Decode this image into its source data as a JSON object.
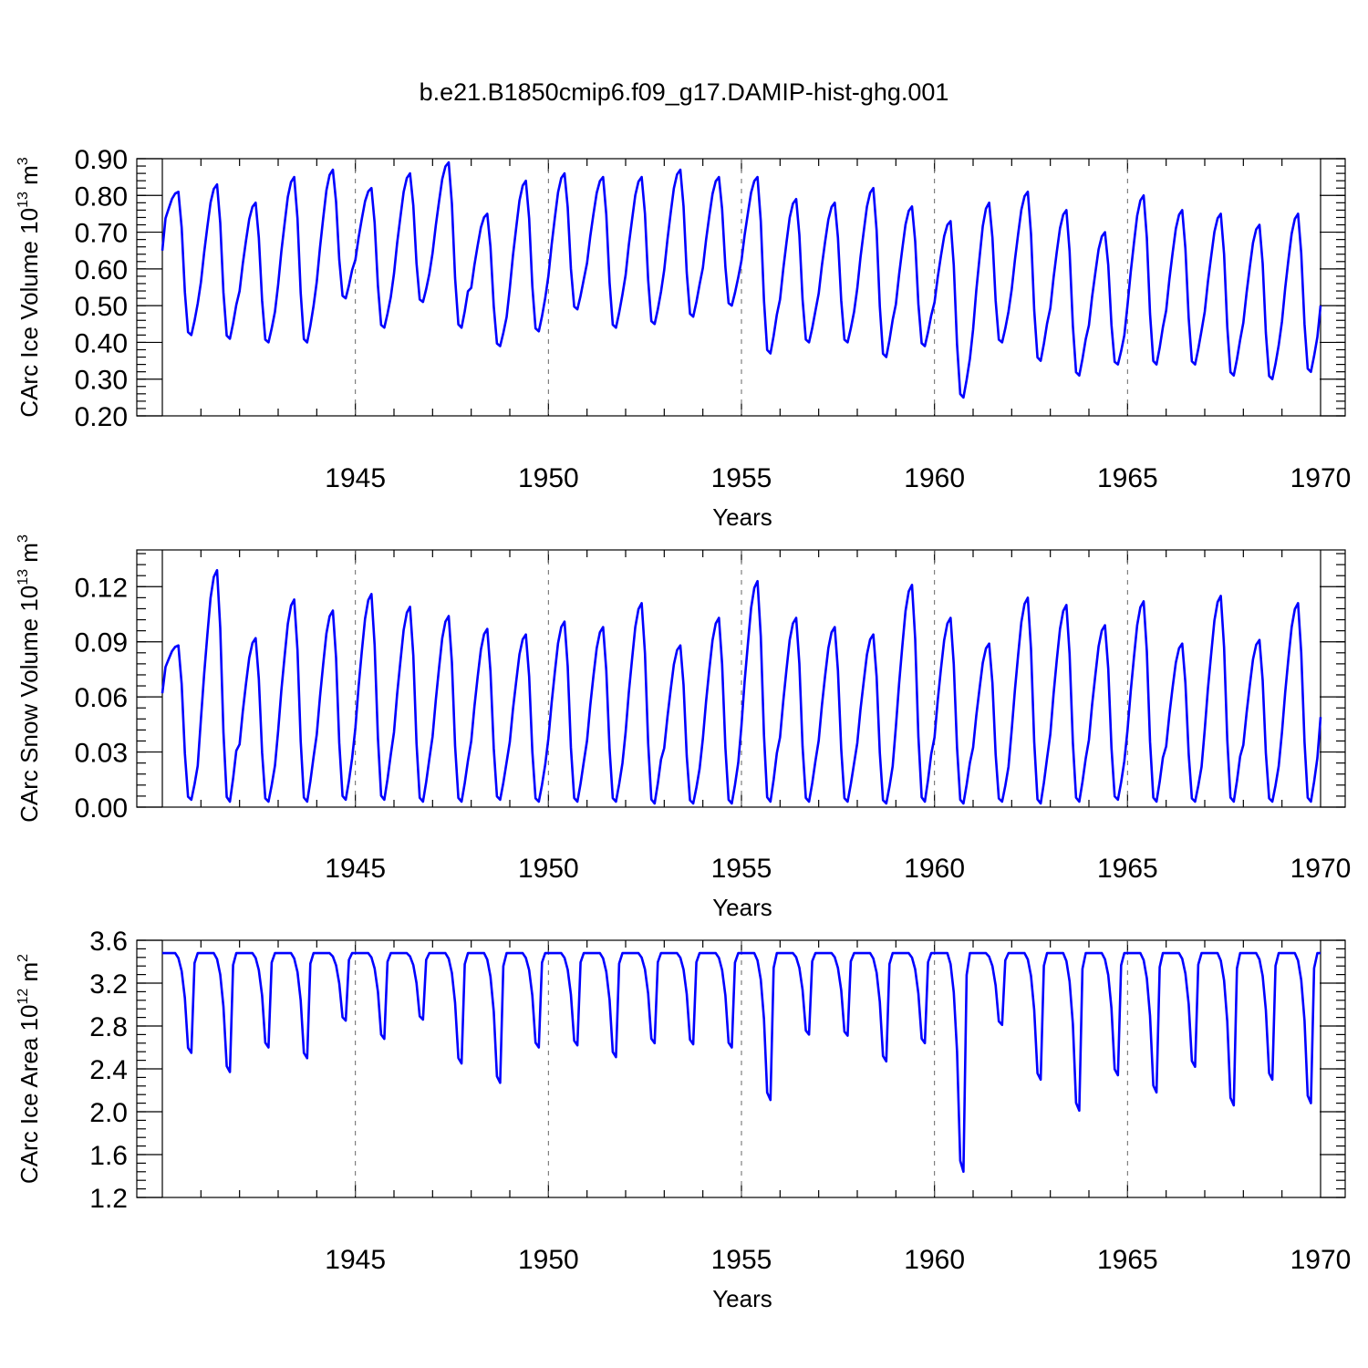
{
  "title": "b.e21.B1850cmip6.f09_g17.DAMIP-hist-ghg.001",
  "line_color": "#0000ff",
  "chart_data": [
    {
      "type": "line",
      "title": "b.e21.B1850cmip6.f09_g17.DAMIP-hist-ghg.001",
      "xlabel": "Years",
      "ylabel_main": "CArc Ice Volume 10",
      "ylabel_exp": "13",
      "ylabel_unit": " m",
      "ylabel_unit_exp": "3",
      "xlim": [
        1940,
        1970
      ],
      "ylim": [
        0.2,
        0.9
      ],
      "x_ticks": [
        1945,
        1950,
        1955,
        1960,
        1965,
        1970
      ],
      "x_tick_labels": [
        "1945",
        "1950",
        "1955",
        "1960",
        "1965",
        "1970"
      ],
      "y_ticks": [
        0.2,
        0.3,
        0.4,
        0.5,
        0.6,
        0.7,
        0.8,
        0.9
      ],
      "y_tick_labels": [
        "0.20",
        "0.30",
        "0.40",
        "0.50",
        "0.60",
        "0.70",
        "0.80",
        "0.90"
      ],
      "y_minor_step": 0.02,
      "grid": "dashed vertical at labeled years",
      "series": [
        {
          "name": "Ice Volume",
          "start_year": 1940,
          "step": "monthly",
          "peaks": [
            0.81,
            0.83,
            0.78,
            0.85,
            0.87,
            0.82,
            0.86,
            0.89,
            0.75,
            0.84,
            0.86,
            0.85,
            0.85,
            0.87,
            0.85,
            0.85,
            0.79,
            0.78,
            0.82,
            0.77,
            0.73,
            0.78,
            0.81,
            0.76,
            0.7,
            0.8,
            0.76,
            0.75,
            0.72,
            0.75
          ],
          "troughs": [
            0.42,
            0.41,
            0.4,
            0.4,
            0.52,
            0.44,
            0.51,
            0.44,
            0.39,
            0.43,
            0.49,
            0.44,
            0.45,
            0.47,
            0.5,
            0.37,
            0.4,
            0.4,
            0.36,
            0.39,
            0.25,
            0.4,
            0.35,
            0.31,
            0.34,
            0.34,
            0.34,
            0.31,
            0.3,
            0.32
          ],
          "start_value": 0.65,
          "end_value": 0.5
        }
      ]
    },
    {
      "type": "line",
      "xlabel": "Years",
      "ylabel_main": "CArc Snow Volume 10",
      "ylabel_exp": "13",
      "ylabel_unit": " m",
      "ylabel_unit_exp": "3",
      "xlim": [
        1940,
        1970
      ],
      "ylim": [
        0.0,
        0.14
      ],
      "x_ticks": [
        1945,
        1950,
        1955,
        1960,
        1965,
        1970
      ],
      "x_tick_labels": [
        "1945",
        "1950",
        "1955",
        "1960",
        "1965",
        "1970"
      ],
      "y_ticks": [
        0.0,
        0.03,
        0.06,
        0.09,
        0.12
      ],
      "y_tick_labels": [
        "0.00",
        "0.03",
        "0.06",
        "0.09",
        "0.12"
      ],
      "y_minor_step": 0.006,
      "grid": "dashed vertical at labeled years",
      "series": [
        {
          "name": "Snow Volume",
          "start_year": 1940,
          "step": "monthly",
          "peaks": [
            0.088,
            0.129,
            0.092,
            0.113,
            0.107,
            0.116,
            0.109,
            0.104,
            0.097,
            0.094,
            0.101,
            0.098,
            0.111,
            0.088,
            0.103,
            0.123,
            0.103,
            0.098,
            0.094,
            0.121,
            0.103,
            0.089,
            0.114,
            0.11,
            0.099,
            0.112,
            0.089,
            0.115,
            0.091,
            0.111
          ],
          "troughs": [
            0.004,
            0.003,
            0.003,
            0.003,
            0.004,
            0.004,
            0.003,
            0.003,
            0.004,
            0.003,
            0.003,
            0.003,
            0.002,
            0.002,
            0.002,
            0.003,
            0.003,
            0.003,
            0.002,
            0.003,
            0.002,
            0.003,
            0.002,
            0.003,
            0.004,
            0.003,
            0.003,
            0.003,
            0.003,
            0.003
          ],
          "start_value": 0.062,
          "end_value": 0.049
        }
      ]
    },
    {
      "type": "line",
      "xlabel": "Years",
      "ylabel_main": "CArc Ice Area 10",
      "ylabel_exp": "12",
      "ylabel_unit": " m",
      "ylabel_unit_exp": "2",
      "xlim": [
        1940,
        1970
      ],
      "ylim": [
        1.2,
        3.6
      ],
      "x_ticks": [
        1945,
        1950,
        1955,
        1960,
        1965,
        1970
      ],
      "x_tick_labels": [
        "1945",
        "1950",
        "1955",
        "1960",
        "1965",
        "1970"
      ],
      "y_ticks": [
        1.2,
        1.6,
        2.0,
        2.4,
        2.8,
        3.2,
        3.6
      ],
      "y_tick_labels": [
        "1.2",
        "1.6",
        "2.0",
        "2.4",
        "2.8",
        "3.2",
        "3.6"
      ],
      "y_minor_step": 0.08,
      "grid": "dashed vertical at labeled years",
      "series": [
        {
          "name": "Ice Area",
          "start_year": 1940,
          "step": "monthly",
          "plateau": 3.48,
          "minima": [
            2.55,
            2.37,
            2.6,
            2.5,
            2.85,
            2.68,
            2.86,
            2.45,
            2.27,
            2.6,
            2.62,
            2.51,
            2.64,
            2.63,
            2.6,
            2.11,
            2.72,
            2.71,
            2.47,
            2.64,
            1.44,
            2.81,
            2.3,
            2.01,
            2.34,
            2.18,
            2.42,
            2.06,
            2.3,
            2.08
          ],
          "start_value": 3.48,
          "end_value": 3.48
        }
      ]
    }
  ]
}
